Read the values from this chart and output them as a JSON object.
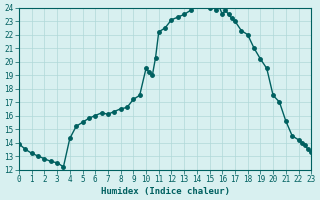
{
  "x": [
    0,
    0.5,
    1,
    1.5,
    2,
    2.5,
    3,
    3.5,
    4,
    4.5,
    5,
    5.5,
    6,
    6.5,
    7,
    7.5,
    8,
    8.5,
    9,
    9.5,
    10,
    10.25,
    10.5,
    10.75,
    11,
    11.5,
    12,
    12.5,
    13,
    13.5,
    14,
    14.25,
    14.5,
    14.75,
    15,
    15.25,
    15.5,
    15.75,
    16,
    16.25,
    16.5,
    16.75,
    17,
    17.5,
    18,
    18.5,
    19,
    19.5,
    20,
    20.5,
    21,
    21.5,
    22,
    22.25,
    22.5,
    22.75,
    23
  ],
  "y": [
    13.9,
    13.5,
    13.2,
    13.0,
    12.8,
    12.6,
    12.5,
    12.2,
    14.3,
    15.2,
    15.5,
    15.8,
    16.0,
    16.2,
    16.1,
    16.3,
    16.5,
    16.6,
    17.2,
    17.5,
    19.5,
    19.2,
    19.0,
    20.3,
    22.2,
    22.5,
    23.1,
    23.3,
    23.5,
    23.8,
    24.2,
    24.5,
    24.3,
    24.1,
    24.0,
    24.2,
    23.8,
    24.1,
    23.5,
    23.8,
    23.5,
    23.2,
    23.0,
    22.3,
    22.0,
    21.0,
    20.2,
    19.5,
    17.5,
    17.0,
    15.6,
    14.5,
    14.2,
    14.0,
    13.8,
    13.5,
    13.3
  ],
  "xlim": [
    0,
    23
  ],
  "ylim": [
    12,
    24
  ],
  "xticks": [
    0,
    1,
    2,
    3,
    4,
    5,
    6,
    7,
    8,
    9,
    10,
    11,
    12,
    13,
    14,
    15,
    16,
    17,
    18,
    19,
    20,
    21,
    22,
    23
  ],
  "yticks": [
    12,
    13,
    14,
    15,
    16,
    17,
    18,
    19,
    20,
    21,
    22,
    23,
    24
  ],
  "xlabel": "Humidex (Indice chaleur)",
  "line_color": "#006060",
  "bg_color": "#d8f0f0",
  "grid_color": "#b0d8d8",
  "tick_label_color": "#006060",
  "xlabel_color": "#006060",
  "marker": "o",
  "marker_size": 2.5,
  "line_width": 1.0
}
